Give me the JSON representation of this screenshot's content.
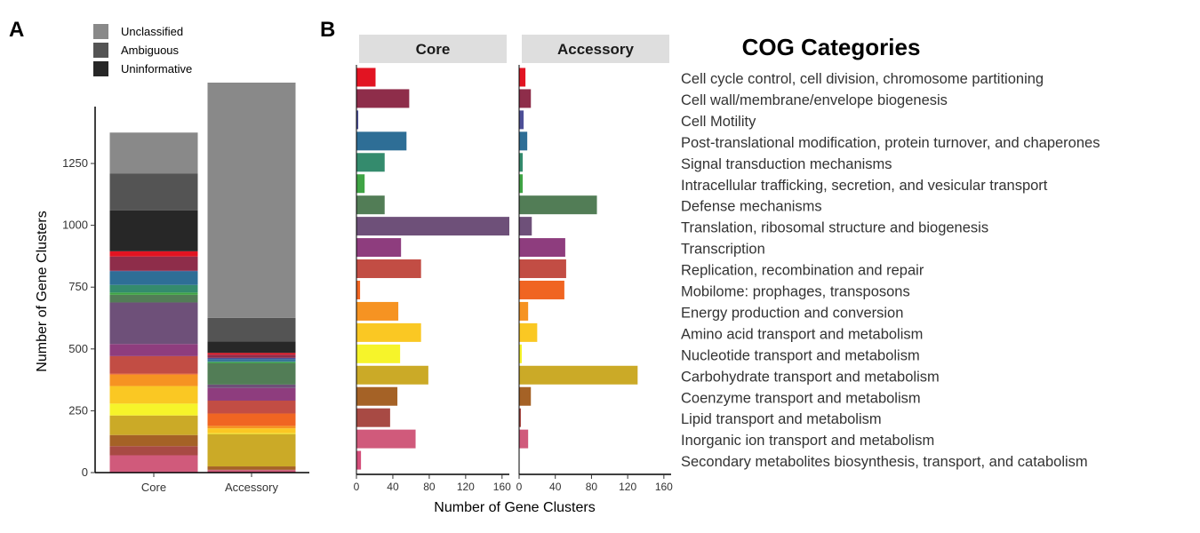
{
  "panel_a": {
    "label": "A",
    "ylabel": "Number of Gene Clusters",
    "legend": [
      {
        "name": "Unclassified",
        "color": "#898989"
      },
      {
        "name": "Ambiguous",
        "color": "#545454"
      },
      {
        "name": "Uninformative",
        "color": "#272727"
      }
    ]
  },
  "panel_b": {
    "label": "B",
    "xlabel": "Number of Gene Clusters",
    "legend_title": "COG Categories"
  },
  "chart_data": [
    {
      "type": "bar",
      "subtype": "stacked",
      "categories": [
        "Core",
        "Accessory"
      ],
      "ylabel": "Number of Gene Clusters",
      "ylim": [
        0,
        1480
      ],
      "yticks": [
        0,
        250,
        500,
        750,
        1000,
        1250
      ],
      "grid": false,
      "legend_position": "top-left",
      "series": [
        {
          "name": "Secondary metabolites biosynthesis, transport, and catabolism",
          "color": "#d44e7a",
          "values": [
            5,
            0
          ]
        },
        {
          "name": "Inorganic ion transport and metabolism",
          "color": "#d05a7b",
          "values": [
            65,
            10
          ]
        },
        {
          "name": "Lipid transport and metabolism",
          "color": "#a84a44",
          "values": [
            37,
            2
          ]
        },
        {
          "name": "Coenzyme transport and metabolism",
          "color": "#a56226",
          "values": [
            45,
            13
          ]
        },
        {
          "name": "Carbohydrate transport and metabolism",
          "color": "#cbaa27",
          "values": [
            79,
            131
          ]
        },
        {
          "name": "Nucleotide transport and metabolism",
          "color": "#f6f42a",
          "values": [
            48,
            3
          ]
        },
        {
          "name": "Amino acid transport and metabolism",
          "color": "#fac823",
          "values": [
            71,
            20
          ]
        },
        {
          "name": "Energy production and conversion",
          "color": "#f69322",
          "values": [
            46,
            10
          ]
        },
        {
          "name": "Mobilome: prophages, transposons",
          "color": "#f06522",
          "values": [
            4,
            50
          ]
        },
        {
          "name": "Replication, recombination and repair",
          "color": "#c24d44",
          "values": [
            71,
            52
          ]
        },
        {
          "name": "Transcription",
          "color": "#8e3d7e",
          "values": [
            49,
            51
          ]
        },
        {
          "name": "Translation, ribosomal structure and biogenesis",
          "color": "#6e5079",
          "values": [
            168,
            14
          ]
        },
        {
          "name": "Defense mechanisms",
          "color": "#527d56",
          "values": [
            31,
            86
          ]
        },
        {
          "name": "Intracellular trafficking, secretion, and vesicular transport",
          "color": "#3fa445",
          "values": [
            9,
            4
          ]
        },
        {
          "name": "Signal transduction mechanisms",
          "color": "#348b6d",
          "values": [
            31,
            4
          ]
        },
        {
          "name": "Post-translational modification, protein turnover, and chaperones",
          "color": "#2e6e96",
          "values": [
            55,
            9
          ]
        },
        {
          "name": "Cell Motility",
          "color": "#4d4f97",
          "values": [
            2,
            5
          ]
        },
        {
          "name": "Cell wall/membrane/envelope biogenesis",
          "color": "#8e2d4a",
          "values": [
            58,
            13
          ]
        },
        {
          "name": "Cell cycle control, cell division, chromosome partitioning",
          "color": "#e21422",
          "values": [
            21,
            7
          ]
        },
        {
          "name": "Uninformative",
          "color": "#272727",
          "values": [
            165,
            47
          ]
        },
        {
          "name": "Ambiguous",
          "color": "#545454",
          "values": [
            150,
            95
          ]
        },
        {
          "name": "Unclassified",
          "color": "#898989",
          "values": [
            165,
            951
          ]
        }
      ]
    },
    {
      "type": "bar",
      "orientation": "horizontal",
      "facets": [
        "Core",
        "Accessory"
      ],
      "xlabel": "Number of Gene Clusters",
      "xlim": [
        0,
        168
      ],
      "xticks": [
        0,
        40,
        80,
        120,
        160
      ],
      "grid": false,
      "legend_title": "COG Categories",
      "legend_position": "right",
      "categories": [
        "Cell cycle control, cell division, chromosome partitioning",
        "Cell wall/membrane/envelope biogenesis",
        "Cell Motility",
        "Post-translational modification, protein turnover, and chaperones",
        "Signal transduction mechanisms",
        "Intracellular trafficking, secretion, and vesicular transport",
        "Defense mechanisms",
        "Translation, ribosomal structure and biogenesis",
        "Transcription",
        "Replication, recombination and repair",
        "Mobilome: prophages, transposons",
        "Energy production and conversion",
        "Amino acid transport and metabolism",
        "Nucleotide transport and metabolism",
        "Carbohydrate transport and metabolism",
        "Coenzyme transport and metabolism",
        "Lipid transport and metabolism",
        "Inorganic ion transport and metabolism",
        "Secondary metabolites biosynthesis, transport, and catabolism"
      ],
      "colors": [
        "#e21422",
        "#8e2d4a",
        "#4d4f97",
        "#2e6e96",
        "#348b6d",
        "#3fa445",
        "#527d56",
        "#6e5079",
        "#8e3d7e",
        "#c24d44",
        "#f06522",
        "#f69322",
        "#fac823",
        "#f6f42a",
        "#cbaa27",
        "#a56226",
        "#a84a44",
        "#d05a7b",
        "#d44e7a"
      ],
      "series": [
        {
          "name": "Core",
          "values": [
            21,
            58,
            2,
            55,
            31,
            9,
            31,
            168,
            49,
            71,
            4,
            46,
            71,
            48,
            79,
            45,
            37,
            65,
            5
          ]
        },
        {
          "name": "Accessory",
          "values": [
            7,
            13,
            5,
            9,
            4,
            4,
            86,
            14,
            51,
            52,
            50,
            10,
            20,
            3,
            131,
            13,
            2,
            10,
            0
          ]
        }
      ]
    }
  ]
}
